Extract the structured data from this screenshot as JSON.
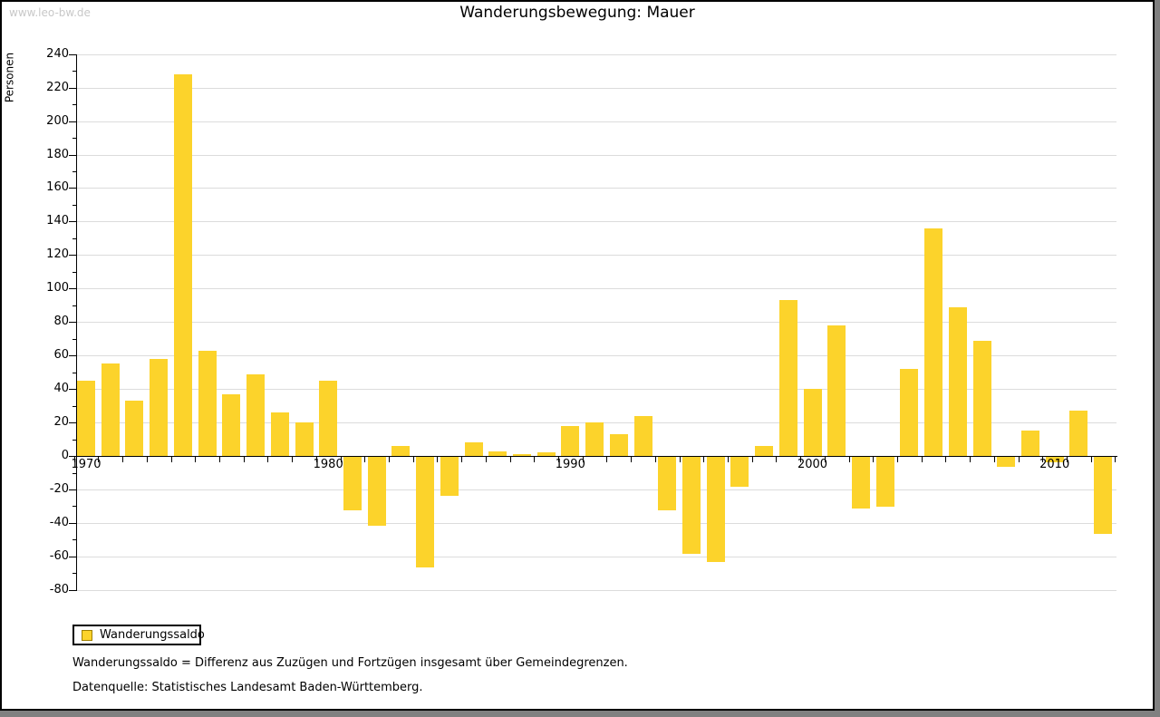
{
  "watermark": "www.leo-bw.de",
  "title": "Wanderungsbewegung: Mauer",
  "chart_data": {
    "type": "bar",
    "title": "Wanderungsbewegung: Mauer",
    "ylabel": "Personen",
    "xlabel": "",
    "series_name": "Wanderungssaldo",
    "categories": [
      1970,
      1971,
      1972,
      1973,
      1974,
      1975,
      1976,
      1977,
      1978,
      1979,
      1980,
      1981,
      1982,
      1983,
      1984,
      1985,
      1986,
      1987,
      1988,
      1989,
      1990,
      1991,
      1992,
      1993,
      1994,
      1995,
      1996,
      1997,
      1998,
      1999,
      2000,
      2001,
      2002,
      2003,
      2004,
      2005,
      2006,
      2007,
      2008,
      2009,
      2010,
      2011,
      2012
    ],
    "values": [
      45,
      55,
      33,
      58,
      228,
      63,
      37,
      49,
      26,
      20,
      45,
      -32,
      -41,
      6,
      -66,
      -23,
      8,
      3,
      1,
      2,
      18,
      20,
      13,
      24,
      -32,
      -58,
      -63,
      -18,
      6,
      93,
      40,
      78,
      -31,
      -30,
      52,
      136,
      89,
      69,
      -6,
      15,
      -3,
      27,
      -46
    ],
    "ylim": [
      -80,
      240
    ],
    "ytick_step": 20,
    "ytick_minor_step": 10,
    "xtick_labels": [
      "1970",
      "1980",
      "1990",
      "2000",
      "2010"
    ],
    "grid": true,
    "legend_position": "bottom-left",
    "bar_color": "#FCD32B"
  },
  "legend": {
    "label": "Wanderungssaldo"
  },
  "footnotes": {
    "definition": "Wanderungssaldo = Differenz aus Zuzügen und Fortzügen insgesamt über Gemeindegrenzen.",
    "source": "Datenquelle: Statistisches Landesamt Baden-Württemberg."
  },
  "colors": {
    "bar": "#FCD32B",
    "grid": "#DCDCDC",
    "axis": "#000000",
    "watermark": "#C8C8C8",
    "frame_shadow": "#808080",
    "legend_swatch_border": "#A08000"
  }
}
